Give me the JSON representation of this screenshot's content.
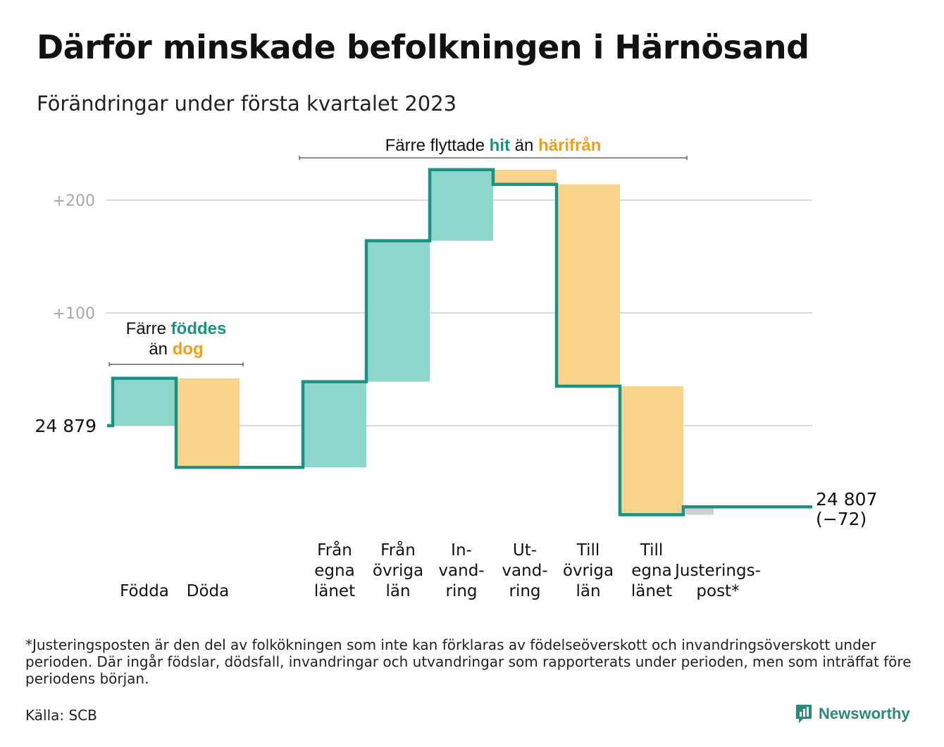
{
  "title": "Därför minskade befolkningen i Härnösand",
  "subtitle": "Förändringar under första kvartalet 2023",
  "chart_data": {
    "type": "waterfall",
    "start": {
      "label": "24 879",
      "value": 24879
    },
    "end": {
      "label": "24 807",
      "change_label": "(−72)",
      "value": 24807,
      "change": -72
    },
    "yaxis": {
      "ticks": [
        {
          "value": 100,
          "label": "+100"
        },
        {
          "value": 200,
          "label": "+200"
        }
      ],
      "gridlines": [
        0,
        100,
        200
      ]
    },
    "steps": [
      {
        "label_lines": [
          "Födda"
        ],
        "value": 42,
        "kind": "in"
      },
      {
        "label_lines": [
          "Döda"
        ],
        "value": -79,
        "kind": "out"
      },
      {
        "label_lines": [
          "Från",
          "egna",
          "länet"
        ],
        "value": 76,
        "kind": "in"
      },
      {
        "label_lines": [
          "Från",
          "övriga",
          "län"
        ],
        "value": 125,
        "kind": "in"
      },
      {
        "label_lines": [
          "In-",
          "vand-",
          "ring"
        ],
        "value": 63,
        "kind": "in"
      },
      {
        "label_lines": [
          "Ut-",
          "vand-",
          "ring"
        ],
        "value": -13,
        "kind": "out"
      },
      {
        "label_lines": [
          "Till",
          "övriga",
          "län"
        ],
        "value": -179,
        "kind": "out"
      },
      {
        "label_lines": [
          "Till",
          "egna",
          "länet"
        ],
        "value": -114,
        "kind": "out"
      },
      {
        "label_lines": [
          "Justerings-",
          "post*"
        ],
        "value": 7,
        "kind": "adjust"
      }
    ],
    "annotations": [
      {
        "text_parts": [
          [
            "Färre ",
            "plain"
          ],
          [
            "föddes",
            "in"
          ],
          [
            "\n",
            "plain"
          ],
          [
            "än ",
            "plain"
          ],
          [
            "dog",
            "out"
          ]
        ],
        "over": [
          0,
          1
        ]
      },
      {
        "text_parts": [
          [
            "Färre flyttade ",
            "plain"
          ],
          [
            "hit",
            "in"
          ],
          [
            " än ",
            "plain"
          ],
          [
            "härifrån",
            "out"
          ]
        ],
        "over": [
          2,
          7
        ]
      }
    ],
    "colors": {
      "in": "#8ed5cc",
      "out": "#fad48c",
      "adjust": "#cfcfcf",
      "line": "#1a9384",
      "in_text": "#1a9384",
      "out_text": "#f0a020",
      "grid": "#dddddd",
      "tick": "#a8a8a8"
    }
  },
  "footnote": "*Justeringsposten är den del av folkökningen som inte kan förklaras av födelseöverskott och invandringsöverskott under perioden. Där ingår födslar, dödsfall, invandringar och utvandringar som rapporterats under perioden, men som inträffat före periodens början.",
  "source": "Källa: SCB",
  "logo": {
    "text": "Newsworthy",
    "icon": "bar-chart-speech-icon"
  }
}
